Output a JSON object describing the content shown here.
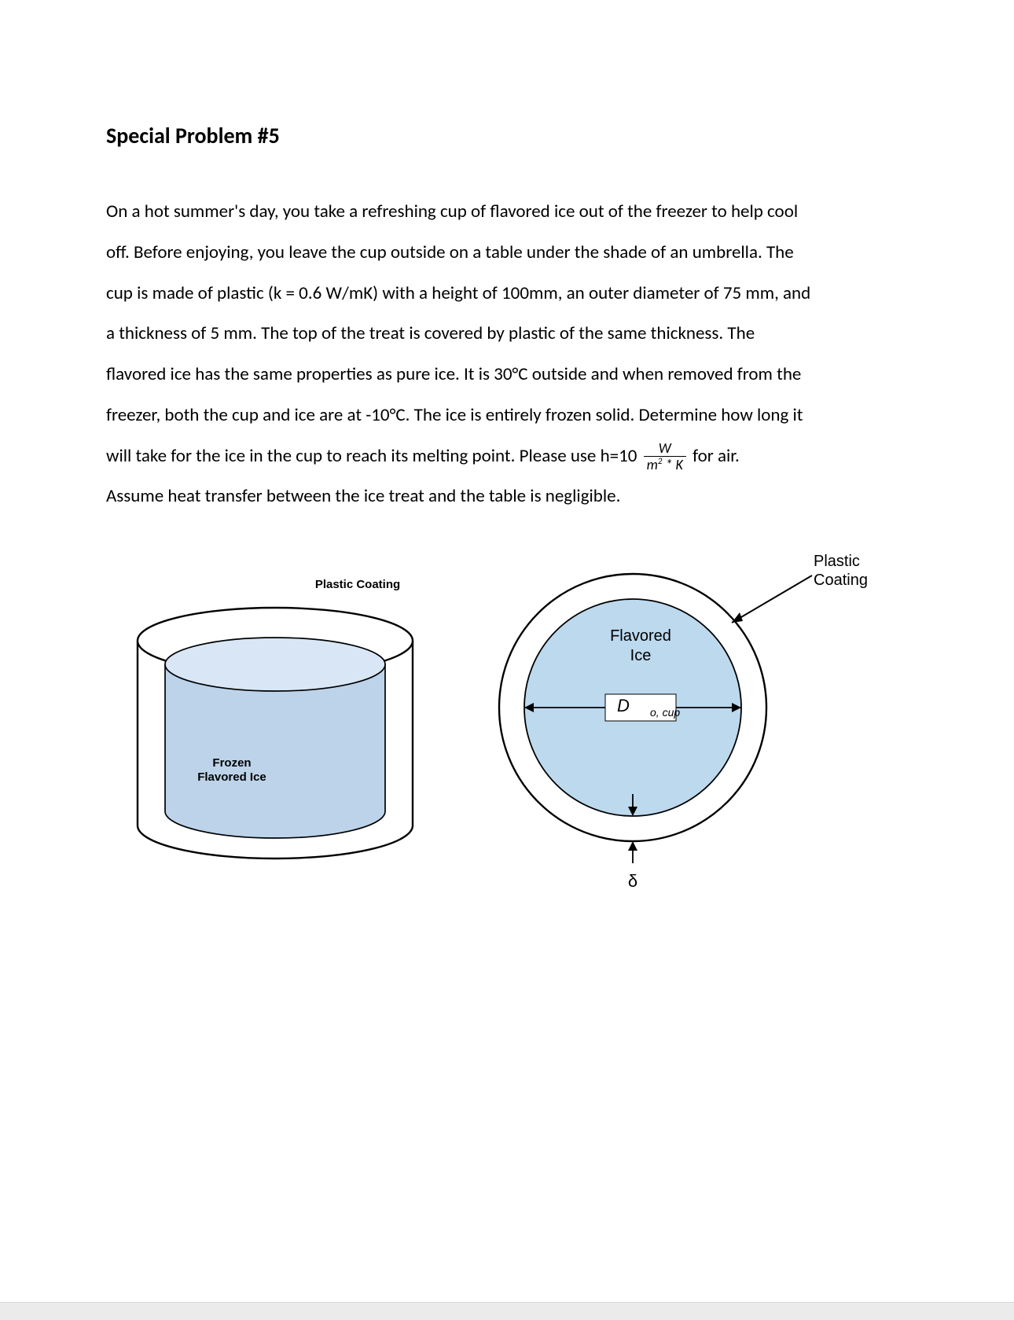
{
  "title": "Special Problem #5",
  "paragraph_lines": [
    "On a hot summer's day, you take a refreshing cup of flavored ice out of the freezer to help cool",
    "off. Before enjoying, you leave the cup outside on a table under the shade of an umbrella. The",
    "cup is made of plastic (k = 0.6 W/mK) with a height of 100mm, an outer diameter of 75 mm, and",
    "a thickness of 5 mm. The top of the treat is covered by plastic of the same thickness. The",
    "flavored ice has the same properties as pure ice. It is 30°C outside and when removed from the",
    "freezer, both the cup and ice are at -10°C. The ice is entirely frozen solid. Determine how long it"
  ],
  "eq_line_pre": "will take for the ice in the cup to reach its melting point. Please use h=10 ",
  "eq_frac_num": "W",
  "eq_frac_den_html": "m<sup>2</sup> * K",
  "eq_line_post": " for air.",
  "paragraph_tail": "Assume heat transfer between the ice treat and the table is negligible.",
  "left_figure": {
    "label_top": "Plastic Coating",
    "label_body": "Frozen\nFlavored Ice",
    "outer_stroke": "#000000",
    "outer_fill": "#ffffff",
    "inner_top_fill": "#d8e6f5",
    "inner_body_fill": "#bcd3ea",
    "inner_stroke": "#000000",
    "label_fontsize": 15,
    "label_weight": "bold"
  },
  "right_figure": {
    "label_outer": "Plastic\nCoating",
    "label_inner_1": "Flavored",
    "label_inner_2": "Ice",
    "dim_label_D": "D",
    "dim_label_Dsub": "o, cup",
    "thickness_symbol": "δ",
    "outer_stroke": "#000000",
    "outer_fill": "#ffffff",
    "inner_fill": "#bcd9ee",
    "inner_stroke": "#000000",
    "inner_label_bg": "#ffffff",
    "inner_label_border": "#000000",
    "label_fontsize": 20,
    "sub_fontsize": 14,
    "delta_fontsize": 22
  },
  "colors": {
    "text": "#000000",
    "page_bg": "#ffffff",
    "footer_bg": "#ebebeb",
    "footer_border": "#d7d7d7"
  }
}
